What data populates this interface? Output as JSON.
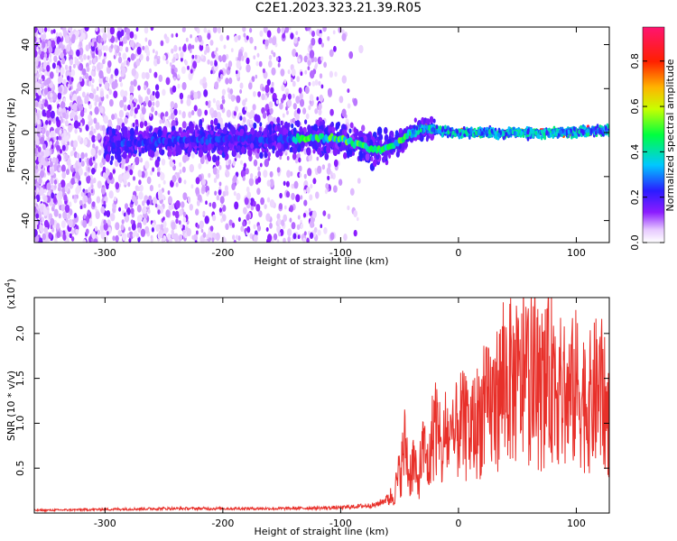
{
  "title": "C2E1.2023.323.21.39.R05",
  "colors": {
    "snr_line": "#e8302a",
    "background": "#ffffff"
  },
  "chart_data": [
    {
      "type": "heatmap",
      "xlabel": "Height of straight line (km)",
      "ylabel": "Frequency (Hz)",
      "xlim": [
        -360,
        128
      ],
      "ylim": [
        -50,
        48
      ],
      "xticks": [
        -300,
        -200,
        -100,
        0,
        100
      ],
      "yticks": [
        -40,
        -20,
        0,
        20,
        40
      ],
      "colorbar": {
        "label": "Normalized spectral amplitude",
        "range": [
          0,
          0.95
        ],
        "ticks": [
          0.0,
          0.2,
          0.4,
          0.6,
          0.8
        ],
        "colormap": "rainbow (white-purple-blue-cyan-green-yellow-red-magenta)"
      },
      "ridge": {
        "description": "dominant frequency track",
        "x": [
          -290,
          -260,
          -200,
          -150,
          -120,
          -100,
          -80,
          -70,
          -60,
          -50,
          -40,
          -30,
          -20,
          0,
          40,
          80,
          128
        ],
        "y": [
          -5,
          -4,
          -3,
          -3,
          -2,
          -3,
          -6,
          -8,
          -7,
          -4,
          0,
          2,
          1,
          0,
          0,
          0,
          1
        ]
      }
    },
    {
      "type": "line",
      "xlabel": "Height of straight line (km)",
      "ylabel": "SNR (10 * v/v)",
      "y_multiplier_label": "(x10",
      "y_multiplier_exp": "4",
      "y_multiplier_close": ")",
      "xlim": [
        -360,
        128
      ],
      "ylim": [
        0,
        24000
      ],
      "xticks": [
        -300,
        -200,
        -100,
        0,
        100
      ],
      "yticks": [
        5000,
        10000,
        15000,
        20000
      ],
      "ytick_labels": [
        "0.5",
        "1.0",
        "1.5",
        "2.0"
      ],
      "series": [
        {
          "x": [
            -360,
            -250,
            -150,
            -100,
            -70,
            -55,
            -48,
            -45,
            -42,
            -38,
            -35,
            -30,
            -25,
            -20,
            -15,
            -10,
            -5,
            0,
            10,
            20,
            30,
            40,
            50,
            60,
            70,
            80,
            90,
            100,
            110,
            120,
            128
          ],
          "y": [
            300,
            500,
            500,
            600,
            900,
            2000,
            5500,
            8000,
            4000,
            6000,
            3000,
            7000,
            5000,
            11000,
            6000,
            9000,
            7000,
            10000,
            9000,
            11000,
            12000,
            15000,
            14000,
            15000,
            13000,
            16000,
            12000,
            14000,
            12000,
            14000,
            10000
          ]
        }
      ]
    }
  ]
}
